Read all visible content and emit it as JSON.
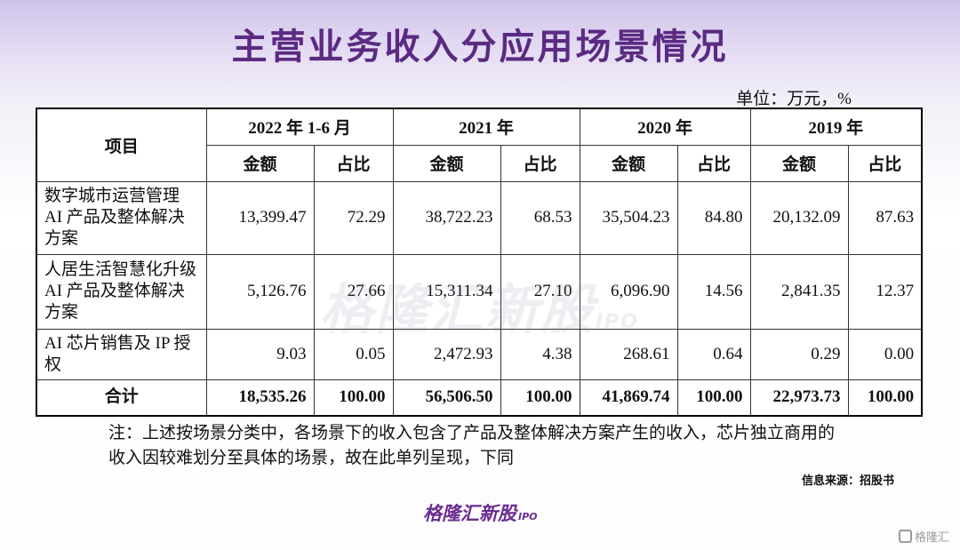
{
  "title": "主营业务收入分应用场景情况",
  "unit": "单位：万元，%",
  "table": {
    "item_header": "项目",
    "periods": [
      "2022 年 1-6 月",
      "2021 年",
      "2020 年",
      "2019 年"
    ],
    "sub_headers": [
      "金额",
      "占比"
    ],
    "rows": [
      {
        "label": "数字城市运营管理 AI 产品及整体解决方案",
        "cells": [
          "13,399.47",
          "72.29",
          "38,722.23",
          "68.53",
          "35,504.23",
          "84.80",
          "20,132.09",
          "87.63"
        ]
      },
      {
        "label": "人居生活智慧化升级 AI 产品及整体解决方案",
        "cells": [
          "5,126.76",
          "27.66",
          "15,311.34",
          "27.10",
          "6,096.90",
          "14.56",
          "2,841.35",
          "12.37"
        ]
      },
      {
        "label": "AI 芯片销售及 IP 授权",
        "cells": [
          "9.03",
          "0.05",
          "2,472.93",
          "4.38",
          "268.61",
          "0.64",
          "0.29",
          "0.00"
        ]
      }
    ],
    "total": {
      "label": "合计",
      "cells": [
        "18,535.26",
        "100.00",
        "56,506.50",
        "100.00",
        "41,869.74",
        "100.00",
        "22,973.73",
        "100.00"
      ]
    }
  },
  "note": "注：上述按场景分类中，各场景下的收入包含了产品及整体解决方案产生的收入，芯片独立商用的收入因较难划分至具体的场景，故在此单列呈现，下同",
  "source": "信息来源：招股书",
  "watermark": {
    "main": "格隆汇新股",
    "sub": "IPO"
  },
  "logo": {
    "main": "格隆汇新股",
    "sub": "IPO"
  },
  "brand": "格隆汇",
  "colors": {
    "title": "#5b2a82",
    "logo": "#6a2d8f"
  }
}
